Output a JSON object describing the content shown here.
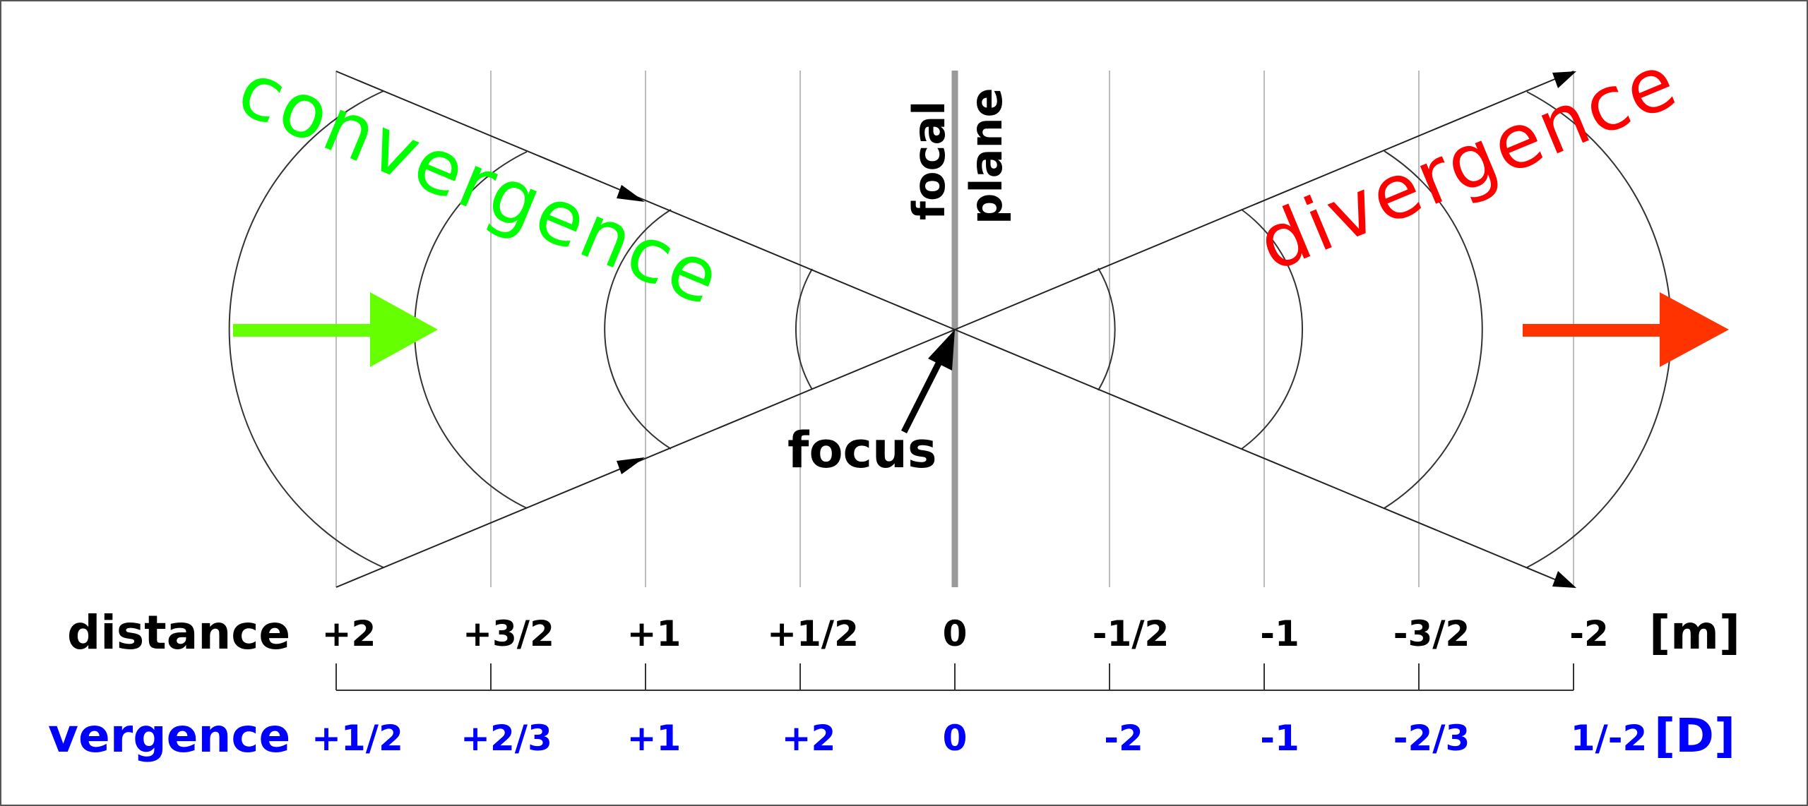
{
  "labels": {
    "convergence": "convergence",
    "divergence": "divergence",
    "focal_plane_line1": "focal",
    "focal_plane_line2": "plane",
    "focus": "focus",
    "distance_row_label": "distance",
    "distance_unit": "[m]",
    "vergence_row_label": "vergence",
    "vergence_unit": "[D]"
  },
  "distance_ticks": [
    "+2",
    "+3/2",
    "+1",
    "+1/2",
    "0",
    "-1/2",
    "-1",
    "-3/2",
    "-2"
  ],
  "vergence_ticks": [
    "+1/2",
    "+2/3",
    "+1",
    "+2",
    "0",
    "-2",
    "-1",
    "-2/3",
    "1/-2"
  ],
  "colors": {
    "convergence": "#00ff00",
    "divergence": "#ff0000",
    "left_arrow": "#66ff00",
    "right_arrow": "#ff3300",
    "vergence_text": "#0000ff",
    "focal_plane": "#999999",
    "grid": "#bbbbbb",
    "rays": "#222222"
  }
}
